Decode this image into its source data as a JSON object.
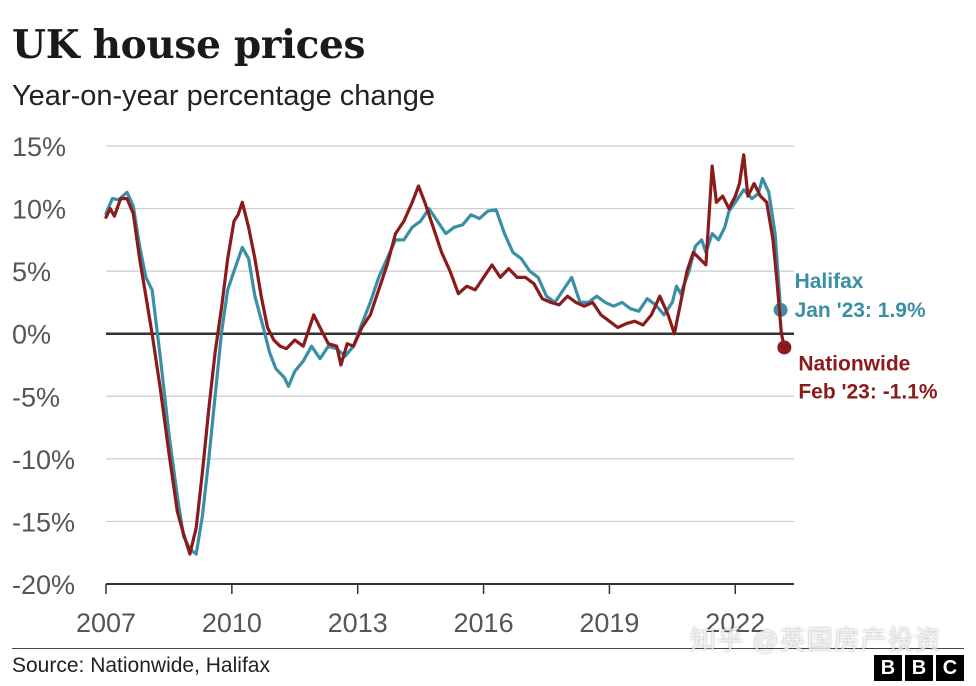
{
  "header": {
    "title": "UK house prices",
    "subtitle": "Year-on-year percentage change"
  },
  "footer": {
    "source": "Source: Nationwide, Halifax",
    "watermark": "知乎 @英国房产投资",
    "logo_letters": [
      "B",
      "B",
      "C"
    ]
  },
  "chart_data": {
    "type": "line",
    "title": "UK house prices",
    "subtitle": "Year-on-year percentage change",
    "xlabel": "",
    "ylabel": "",
    "x_ticks": [
      "2007",
      "2010",
      "2013",
      "2016",
      "2019",
      "2022"
    ],
    "y_ticks": [
      "15%",
      "10%",
      "5%",
      "0%",
      "-5%",
      "-10%",
      "-15%",
      "-20%"
    ],
    "xlim": [
      2007.0,
      2023.4
    ],
    "ylim": [
      -20,
      15
    ],
    "grid": true,
    "colors": {
      "Halifax": "#3a8fa6",
      "Nationwide": "#8b1a1a",
      "zero_line": "#333333",
      "grid": "#cccccc"
    },
    "series": [
      {
        "name": "Halifax",
        "end_label": "Halifax",
        "end_value_label": "Jan '23: 1.9%",
        "points": [
          [
            2007.0,
            9.6
          ],
          [
            2007.15,
            10.8
          ],
          [
            2007.3,
            10.7
          ],
          [
            2007.5,
            11.3
          ],
          [
            2007.65,
            10.2
          ],
          [
            2007.8,
            7.0
          ],
          [
            2007.95,
            4.5
          ],
          [
            2008.1,
            3.5
          ],
          [
            2008.3,
            -2.0
          ],
          [
            2008.5,
            -8.0
          ],
          [
            2008.7,
            -13.0
          ],
          [
            2008.85,
            -16.2
          ],
          [
            2009.0,
            -17.2
          ],
          [
            2009.15,
            -17.6
          ],
          [
            2009.3,
            -14.5
          ],
          [
            2009.45,
            -10.0
          ],
          [
            2009.6,
            -5.0
          ],
          [
            2009.75,
            0.0
          ],
          [
            2009.9,
            3.5
          ],
          [
            2010.05,
            5.0
          ],
          [
            2010.25,
            6.9
          ],
          [
            2010.4,
            6.0
          ],
          [
            2010.55,
            3.0
          ],
          [
            2010.75,
            0.5
          ],
          [
            2010.9,
            -1.5
          ],
          [
            2011.05,
            -2.8
          ],
          [
            2011.25,
            -3.5
          ],
          [
            2011.35,
            -4.2
          ],
          [
            2011.5,
            -3.0
          ],
          [
            2011.7,
            -2.2
          ],
          [
            2011.9,
            -1.0
          ],
          [
            2012.1,
            -2.0
          ],
          [
            2012.3,
            -1.0
          ],
          [
            2012.5,
            -1.2
          ],
          [
            2012.7,
            -1.8
          ],
          [
            2012.9,
            -1.0
          ],
          [
            2013.1,
            0.8
          ],
          [
            2013.3,
            2.5
          ],
          [
            2013.5,
            4.5
          ],
          [
            2013.7,
            6.0
          ],
          [
            2013.9,
            7.5
          ],
          [
            2014.1,
            7.5
          ],
          [
            2014.3,
            8.5
          ],
          [
            2014.5,
            9.0
          ],
          [
            2014.7,
            10.0
          ],
          [
            2014.9,
            9.0
          ],
          [
            2015.1,
            8.0
          ],
          [
            2015.3,
            8.5
          ],
          [
            2015.5,
            8.7
          ],
          [
            2015.7,
            9.5
          ],
          [
            2015.9,
            9.2
          ],
          [
            2016.1,
            9.8
          ],
          [
            2016.3,
            9.9
          ],
          [
            2016.5,
            8.0
          ],
          [
            2016.7,
            6.5
          ],
          [
            2016.9,
            6.0
          ],
          [
            2017.1,
            5.0
          ],
          [
            2017.3,
            4.5
          ],
          [
            2017.5,
            3.0
          ],
          [
            2017.7,
            2.5
          ],
          [
            2017.9,
            3.5
          ],
          [
            2018.1,
            4.5
          ],
          [
            2018.3,
            2.5
          ],
          [
            2018.5,
            2.5
          ],
          [
            2018.7,
            3.0
          ],
          [
            2018.9,
            2.5
          ],
          [
            2019.1,
            2.2
          ],
          [
            2019.3,
            2.5
          ],
          [
            2019.5,
            2.0
          ],
          [
            2019.7,
            1.8
          ],
          [
            2019.9,
            2.8
          ],
          [
            2020.1,
            2.3
          ],
          [
            2020.3,
            1.5
          ],
          [
            2020.5,
            2.5
          ],
          [
            2020.6,
            3.8
          ],
          [
            2020.7,
            3.2
          ],
          [
            2020.9,
            5.0
          ],
          [
            2021.05,
            7.0
          ],
          [
            2021.2,
            7.5
          ],
          [
            2021.3,
            6.5
          ],
          [
            2021.45,
            8.0
          ],
          [
            2021.6,
            7.5
          ],
          [
            2021.75,
            8.5
          ],
          [
            2021.85,
            9.8
          ],
          [
            2022.0,
            10.5
          ],
          [
            2022.2,
            11.5
          ],
          [
            2022.4,
            10.8
          ],
          [
            2022.55,
            11.2
          ],
          [
            2022.65,
            12.4
          ],
          [
            2022.8,
            11.3
          ],
          [
            2022.95,
            8.0
          ],
          [
            2023.08,
            1.9
          ]
        ]
      },
      {
        "name": "Nationwide",
        "end_label": "Nationwide",
        "end_value_label": "Feb '23: -1.1%",
        "points": [
          [
            2007.0,
            9.3
          ],
          [
            2007.1,
            10.0
          ],
          [
            2007.2,
            9.4
          ],
          [
            2007.35,
            10.8
          ],
          [
            2007.5,
            10.8
          ],
          [
            2007.65,
            9.6
          ],
          [
            2007.8,
            6.0
          ],
          [
            2007.95,
            3.0
          ],
          [
            2008.1,
            0.0
          ],
          [
            2008.3,
            -4.5
          ],
          [
            2008.5,
            -9.5
          ],
          [
            2008.7,
            -14.2
          ],
          [
            2008.85,
            -16.0
          ],
          [
            2009.0,
            -17.6
          ],
          [
            2009.15,
            -15.5
          ],
          [
            2009.3,
            -11.0
          ],
          [
            2009.45,
            -6.0
          ],
          [
            2009.6,
            -1.5
          ],
          [
            2009.75,
            2.0
          ],
          [
            2009.9,
            6.0
          ],
          [
            2010.05,
            9.0
          ],
          [
            2010.15,
            9.5
          ],
          [
            2010.25,
            10.5
          ],
          [
            2010.4,
            8.5
          ],
          [
            2010.55,
            6.0
          ],
          [
            2010.7,
            3.0
          ],
          [
            2010.85,
            0.5
          ],
          [
            2011.0,
            -0.5
          ],
          [
            2011.15,
            -1.0
          ],
          [
            2011.3,
            -1.2
          ],
          [
            2011.5,
            -0.5
          ],
          [
            2011.7,
            -1.0
          ],
          [
            2011.85,
            0.5
          ],
          [
            2011.95,
            1.5
          ],
          [
            2012.1,
            0.5
          ],
          [
            2012.3,
            -0.8
          ],
          [
            2012.5,
            -1.0
          ],
          [
            2012.6,
            -2.5
          ],
          [
            2012.75,
            -0.8
          ],
          [
            2012.9,
            -1.0
          ],
          [
            2013.1,
            0.5
          ],
          [
            2013.3,
            1.5
          ],
          [
            2013.5,
            3.5
          ],
          [
            2013.7,
            5.5
          ],
          [
            2013.9,
            8.0
          ],
          [
            2014.1,
            9.0
          ],
          [
            2014.3,
            10.5
          ],
          [
            2014.45,
            11.8
          ],
          [
            2014.6,
            10.5
          ],
          [
            2014.8,
            8.5
          ],
          [
            2015.0,
            6.5
          ],
          [
            2015.2,
            5.0
          ],
          [
            2015.4,
            3.2
          ],
          [
            2015.6,
            3.8
          ],
          [
            2015.8,
            3.5
          ],
          [
            2016.0,
            4.5
          ],
          [
            2016.2,
            5.5
          ],
          [
            2016.4,
            4.5
          ],
          [
            2016.6,
            5.2
          ],
          [
            2016.8,
            4.5
          ],
          [
            2017.0,
            4.5
          ],
          [
            2017.2,
            4.0
          ],
          [
            2017.4,
            2.8
          ],
          [
            2017.6,
            2.5
          ],
          [
            2017.8,
            2.3
          ],
          [
            2018.0,
            3.0
          ],
          [
            2018.2,
            2.5
          ],
          [
            2018.4,
            2.2
          ],
          [
            2018.6,
            2.5
          ],
          [
            2018.8,
            1.5
          ],
          [
            2019.0,
            1.0
          ],
          [
            2019.2,
            0.5
          ],
          [
            2019.4,
            0.8
          ],
          [
            2019.6,
            1.0
          ],
          [
            2019.8,
            0.7
          ],
          [
            2020.0,
            1.5
          ],
          [
            2020.2,
            3.0
          ],
          [
            2020.4,
            1.5
          ],
          [
            2020.55,
            0.0
          ],
          [
            2020.7,
            2.5
          ],
          [
            2020.85,
            5.0
          ],
          [
            2021.0,
            6.5
          ],
          [
            2021.15,
            6.0
          ],
          [
            2021.3,
            5.5
          ],
          [
            2021.45,
            13.4
          ],
          [
            2021.55,
            10.5
          ],
          [
            2021.7,
            11.0
          ],
          [
            2021.85,
            10.0
          ],
          [
            2022.0,
            11.0
          ],
          [
            2022.1,
            12.0
          ],
          [
            2022.2,
            14.3
          ],
          [
            2022.3,
            11.0
          ],
          [
            2022.45,
            12.0
          ],
          [
            2022.6,
            11.0
          ],
          [
            2022.75,
            10.5
          ],
          [
            2022.9,
            7.5
          ],
          [
            2023.0,
            4.0
          ],
          [
            2023.1,
            0.0
          ],
          [
            2023.17,
            -1.1
          ]
        ]
      }
    ]
  }
}
